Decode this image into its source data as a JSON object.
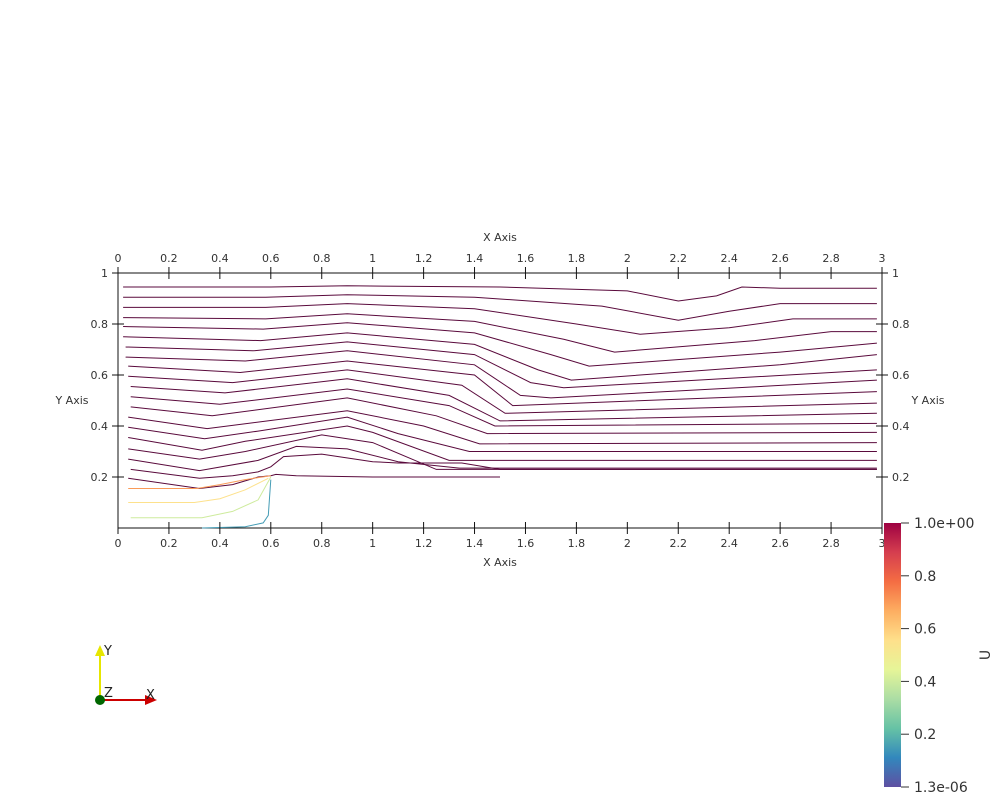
{
  "chart_data": {
    "type": "line",
    "title": "",
    "xlabel": "X Axis",
    "ylabel": "Y Axis",
    "xlim": [
      0,
      3
    ],
    "ylim": [
      0,
      1
    ],
    "x_ticks": [
      "0",
      "0.2",
      "0.4",
      "0.6",
      "0.8",
      "1",
      "1.2",
      "1.4",
      "1.6",
      "1.8",
      "2",
      "2.2",
      "2.4",
      "2.6",
      "2.8",
      "3"
    ],
    "y_ticks": [
      "0.2",
      "0.4",
      "0.6",
      "0.8",
      "1"
    ],
    "colorbar": {
      "label": "U",
      "range": [
        1.3e-06,
        1.0
      ],
      "max_label": "1.0e+00",
      "min_label": "1.3e-06",
      "tick_labels": [
        "0.8",
        "0.6",
        "0.4",
        "0.2"
      ],
      "tick_values": [
        0.8,
        0.6,
        0.4,
        0.2
      ]
    },
    "colormap": [
      "#5e4fa2",
      "#3288bd",
      "#66c2a5",
      "#abdda4",
      "#e6f598",
      "#fee08b",
      "#fdae61",
      "#f46d43",
      "#d53e4f",
      "#9e0142"
    ],
    "streamline_color": "#5a0a3c",
    "streamlines": [
      [
        [
          0.02,
          0.945
        ],
        [
          0.6,
          0.945
        ],
        [
          0.9,
          0.95
        ],
        [
          1.5,
          0.945
        ],
        [
          2.0,
          0.93
        ],
        [
          2.2,
          0.89
        ],
        [
          2.35,
          0.91
        ],
        [
          2.45,
          0.945
        ],
        [
          2.6,
          0.94
        ],
        [
          2.98,
          0.94
        ]
      ],
      [
        [
          0.02,
          0.905
        ],
        [
          0.58,
          0.905
        ],
        [
          0.9,
          0.915
        ],
        [
          1.4,
          0.905
        ],
        [
          1.9,
          0.87
        ],
        [
          2.2,
          0.815
        ],
        [
          2.4,
          0.85
        ],
        [
          2.6,
          0.88
        ],
        [
          2.98,
          0.88
        ]
      ],
      [
        [
          0.02,
          0.865
        ],
        [
          0.58,
          0.865
        ],
        [
          0.9,
          0.88
        ],
        [
          1.4,
          0.86
        ],
        [
          1.8,
          0.8
        ],
        [
          2.05,
          0.76
        ],
        [
          2.4,
          0.785
        ],
        [
          2.65,
          0.82
        ],
        [
          2.98,
          0.82
        ]
      ],
      [
        [
          0.02,
          0.825
        ],
        [
          0.58,
          0.82
        ],
        [
          0.9,
          0.84
        ],
        [
          1.4,
          0.81
        ],
        [
          1.75,
          0.74
        ],
        [
          1.95,
          0.69
        ],
        [
          2.5,
          0.735
        ],
        [
          2.8,
          0.77
        ],
        [
          2.98,
          0.77
        ]
      ],
      [
        [
          0.02,
          0.79
        ],
        [
          0.57,
          0.78
        ],
        [
          0.9,
          0.805
        ],
        [
          1.4,
          0.765
        ],
        [
          1.7,
          0.68
        ],
        [
          1.85,
          0.635
        ],
        [
          2.6,
          0.69
        ],
        [
          2.98,
          0.725
        ]
      ],
      [
        [
          0.02,
          0.75
        ],
        [
          0.56,
          0.735
        ],
        [
          0.9,
          0.765
        ],
        [
          1.4,
          0.72
        ],
        [
          1.65,
          0.62
        ],
        [
          1.78,
          0.58
        ],
        [
          2.6,
          0.64
        ],
        [
          2.98,
          0.68
        ]
      ],
      [
        [
          0.03,
          0.71
        ],
        [
          0.53,
          0.695
        ],
        [
          0.9,
          0.73
        ],
        [
          1.4,
          0.68
        ],
        [
          1.62,
          0.57
        ],
        [
          1.75,
          0.55
        ],
        [
          2.98,
          0.62
        ]
      ],
      [
        [
          0.03,
          0.67
        ],
        [
          0.5,
          0.655
        ],
        [
          0.9,
          0.695
        ],
        [
          1.4,
          0.64
        ],
        [
          1.58,
          0.52
        ],
        [
          1.7,
          0.51
        ],
        [
          2.98,
          0.58
        ]
      ],
      [
        [
          0.04,
          0.635
        ],
        [
          0.48,
          0.61
        ],
        [
          0.9,
          0.655
        ],
        [
          1.4,
          0.6
        ],
        [
          1.55,
          0.48
        ],
        [
          2.98,
          0.535
        ]
      ],
      [
        [
          0.04,
          0.595
        ],
        [
          0.45,
          0.57
        ],
        [
          0.9,
          0.62
        ],
        [
          1.35,
          0.56
        ],
        [
          1.52,
          0.45
        ],
        [
          2.98,
          0.49
        ]
      ],
      [
        [
          0.05,
          0.555
        ],
        [
          0.42,
          0.53
        ],
        [
          0.9,
          0.585
        ],
        [
          1.3,
          0.52
        ],
        [
          1.5,
          0.42
        ],
        [
          2.98,
          0.45
        ]
      ],
      [
        [
          0.05,
          0.515
        ],
        [
          0.4,
          0.485
        ],
        [
          0.9,
          0.545
        ],
        [
          1.3,
          0.48
        ],
        [
          1.48,
          0.4
        ],
        [
          2.98,
          0.41
        ]
      ],
      [
        [
          0.05,
          0.475
        ],
        [
          0.37,
          0.44
        ],
        [
          0.9,
          0.51
        ],
        [
          1.25,
          0.44
        ],
        [
          1.45,
          0.37
        ],
        [
          2.98,
          0.375
        ]
      ],
      [
        [
          0.04,
          0.435
        ],
        [
          0.35,
          0.39
        ],
        [
          0.9,
          0.46
        ],
        [
          1.2,
          0.4
        ],
        [
          1.42,
          0.33
        ],
        [
          2.98,
          0.335
        ]
      ],
      [
        [
          0.04,
          0.395
        ],
        [
          0.34,
          0.35
        ],
        [
          0.55,
          0.38
        ],
        [
          0.9,
          0.435
        ],
        [
          1.1,
          0.37
        ],
        [
          1.38,
          0.3
        ],
        [
          2.98,
          0.3
        ]
      ],
      [
        [
          0.04,
          0.355
        ],
        [
          0.33,
          0.305
        ],
        [
          0.5,
          0.34
        ],
        [
          0.9,
          0.4
        ],
        [
          1.0,
          0.375
        ],
        [
          1.3,
          0.265
        ],
        [
          2.98,
          0.265
        ]
      ],
      [
        [
          0.04,
          0.31
        ],
        [
          0.32,
          0.27
        ],
        [
          0.5,
          0.3
        ],
        [
          0.8,
          0.365
        ],
        [
          1.0,
          0.335
        ],
        [
          1.25,
          0.23
        ],
        [
          2.98,
          0.23
        ]
      ],
      [
        [
          0.04,
          0.27
        ],
        [
          0.32,
          0.225
        ],
        [
          0.55,
          0.265
        ],
        [
          0.7,
          0.32
        ],
        [
          0.9,
          0.31
        ],
        [
          1.1,
          0.26
        ],
        [
          1.34,
          0.235
        ],
        [
          2.98,
          0.235
        ]
      ],
      [
        [
          0.05,
          0.23
        ],
        [
          0.32,
          0.195
        ],
        [
          0.45,
          0.205
        ],
        [
          0.55,
          0.22
        ],
        [
          0.6,
          0.24
        ],
        [
          0.65,
          0.28
        ],
        [
          0.8,
          0.29
        ],
        [
          1.0,
          0.26
        ],
        [
          1.1,
          0.255
        ],
        [
          1.35,
          0.255
        ],
        [
          1.5,
          0.23
        ],
        [
          2.98,
          0.23
        ]
      ],
      [
        [
          0.04,
          0.195
        ],
        [
          0.32,
          0.155
        ],
        [
          0.45,
          0.17
        ],
        [
          0.55,
          0.2
        ],
        [
          0.6,
          0.205
        ],
        [
          0.62,
          0.21
        ],
        [
          0.7,
          0.205
        ],
        [
          1.0,
          0.2
        ],
        [
          1.5,
          0.2
        ]
      ],
      [
        [
          0.04,
          0.155
        ],
        [
          0.31,
          0.155
        ],
        [
          0.4,
          0.17
        ],
        [
          0.5,
          0.19
        ],
        [
          0.6,
          0.205
        ]
      ],
      [
        [
          0.04,
          0.1
        ],
        [
          0.3,
          0.1
        ],
        [
          0.4,
          0.115
        ],
        [
          0.5,
          0.15
        ],
        [
          0.59,
          0.195
        ]
      ],
      [
        [
          0.05,
          0.04
        ],
        [
          0.33,
          0.04
        ],
        [
          0.45,
          0.065
        ],
        [
          0.55,
          0.11
        ],
        [
          0.6,
          0.2
        ]
      ],
      [
        [
          0.33,
          0.0
        ],
        [
          0.5,
          0.005
        ],
        [
          0.57,
          0.02
        ],
        [
          0.59,
          0.05
        ],
        [
          0.6,
          0.19
        ]
      ]
    ],
    "streamline_speeds": [
      0.95,
      0.95,
      0.95,
      0.95,
      0.95,
      0.95,
      0.95,
      0.95,
      0.95,
      0.95,
      0.95,
      0.95,
      0.95,
      0.95,
      0.95,
      0.95,
      0.95,
      0.95,
      0.95,
      0.95,
      0.7,
      0.55,
      0.4,
      0.15
    ]
  },
  "orientation_triad": {
    "x_label": "X",
    "y_label": "Y",
    "z_label": "Z",
    "x_color": "#cc0000",
    "y_color": "#e6e600",
    "z_color": "#006600"
  }
}
